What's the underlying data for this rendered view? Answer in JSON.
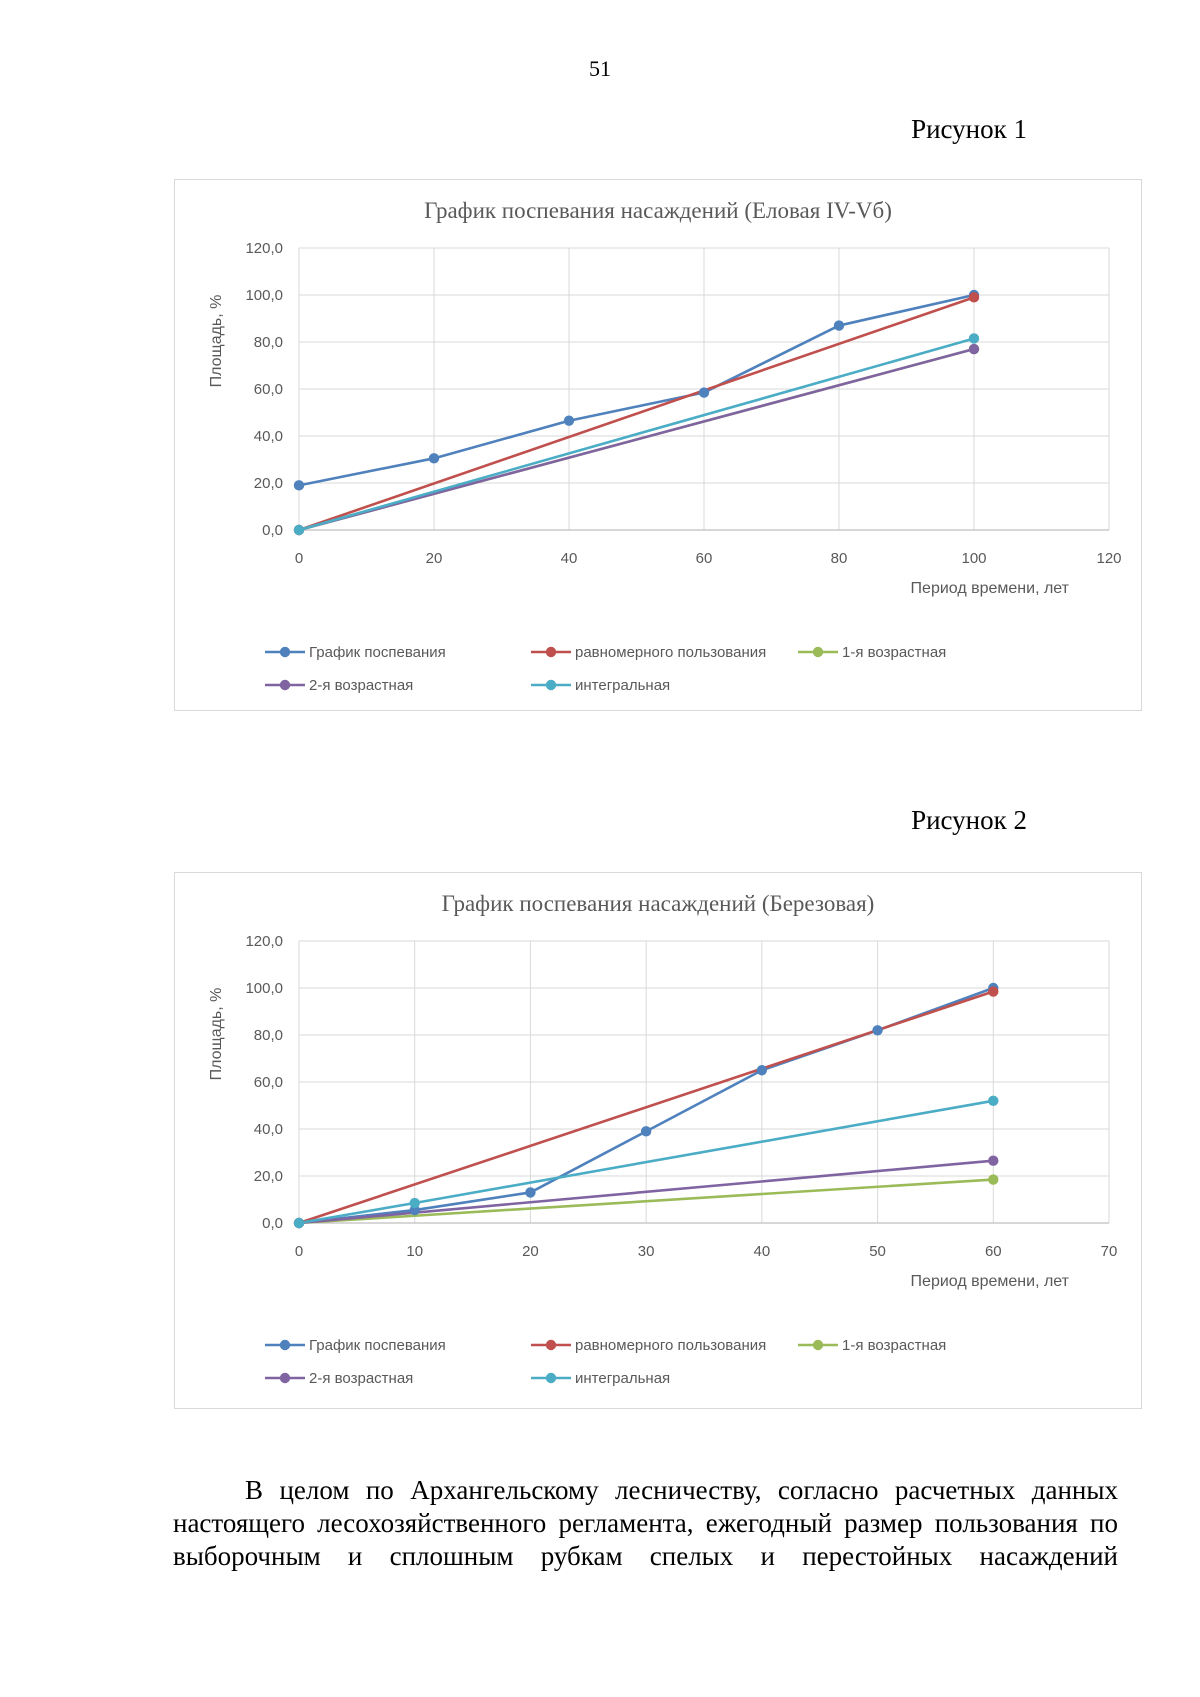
{
  "page": {
    "number": "51",
    "figure1_caption": "Рисунок 1",
    "figure2_caption": "Рисунок 2",
    "paragraph": "В целом по Архангельскому лесничеству, согласно расчетных данных настоящего лесохозяйственного регламента, ежегодный размер пользования по выборочным и сплошным рубкам спелых и перестойных насаждений"
  },
  "chart_data": [
    {
      "type": "line",
      "title": "График поспевания насаждений (Еловая IV-Vб)",
      "xlabel": "Период времени, лет",
      "ylabel": "Площадь, %",
      "xlim": [
        0,
        120
      ],
      "ylim": [
        0,
        120
      ],
      "x_ticks": [
        "0",
        "20",
        "40",
        "60",
        "80",
        "100",
        "120"
      ],
      "y_ticks": [
        "0,0",
        "20,0",
        "40,0",
        "60,0",
        "80,0",
        "100,0",
        "120,0"
      ],
      "grid": true,
      "legend_position": "bottom",
      "series": [
        {
          "name": "График поспевания",
          "color": "#4f81bd",
          "x": [
            0,
            20,
            40,
            60,
            80,
            100
          ],
          "y": [
            19,
            30.5,
            46.5,
            58.5,
            87,
            100
          ]
        },
        {
          "name": "равномерного пользования",
          "color": "#c0504d",
          "x": [
            0,
            100
          ],
          "y": [
            0,
            99
          ]
        },
        {
          "name": "1-я возрастная",
          "color": "#9bbb59",
          "x": [
            0,
            100
          ],
          "y": [
            0,
            77
          ]
        },
        {
          "name": "2-я возрастная",
          "color": "#8064a2",
          "x": [
            0,
            100
          ],
          "y": [
            0,
            77
          ]
        },
        {
          "name": "интегральная",
          "color": "#4bacc6",
          "x": [
            0,
            100
          ],
          "y": [
            0,
            81.5
          ]
        }
      ]
    },
    {
      "type": "line",
      "title": "График поспевания насаждений (Березовая)",
      "xlabel": "Период времени, лет",
      "ylabel": "Площадь, %",
      "xlim": [
        0,
        70
      ],
      "ylim": [
        0,
        120
      ],
      "x_ticks": [
        "0",
        "10",
        "20",
        "30",
        "40",
        "50",
        "60",
        "70"
      ],
      "y_ticks": [
        "0,0",
        "20,0",
        "40,0",
        "60,0",
        "80,0",
        "100,0",
        "120,0"
      ],
      "grid": true,
      "legend_position": "bottom",
      "series": [
        {
          "name": "График поспевания",
          "color": "#4f81bd",
          "x": [
            0,
            10,
            20,
            30,
            40,
            50,
            60
          ],
          "y": [
            0,
            5.5,
            13,
            39,
            65,
            82,
            100
          ]
        },
        {
          "name": "равномерного пользования",
          "color": "#c0504d",
          "x": [
            0,
            60
          ],
          "y": [
            0,
            98.5
          ]
        },
        {
          "name": "1-я возрастная",
          "color": "#9bbb59",
          "x": [
            0,
            60
          ],
          "y": [
            0,
            18.5
          ]
        },
        {
          "name": "2-я возрастная",
          "color": "#8064a2",
          "x": [
            0,
            60
          ],
          "y": [
            0,
            26.5
          ]
        },
        {
          "name": "интегральная",
          "color": "#4bacc6",
          "x": [
            0,
            10,
            60
          ],
          "y": [
            0,
            8.5,
            52
          ]
        }
      ]
    }
  ]
}
